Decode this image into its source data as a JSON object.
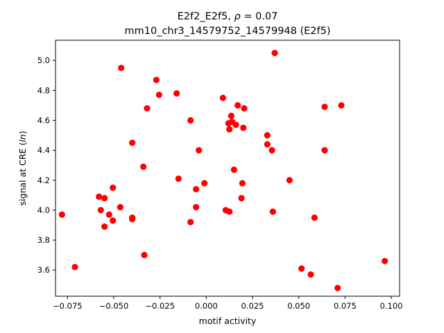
{
  "chart_data": {
    "type": "scatter",
    "title_line1_prefix": "E2f2_E2f5, ",
    "title_rho": "ρ",
    "title_line1_suffix": " = 0.07",
    "title_line2": "mm10_chr3_14579752_14579948 (E2f5)",
    "xlabel": "motif activity",
    "ylabel_prefix": "signal at CRE (",
    "ylabel_italic": "ln",
    "ylabel_suffix": ")",
    "xlim": [
      -0.0815,
      0.1045
    ],
    "ylim": [
      3.425,
      5.135
    ],
    "x_ticks": [
      -0.075,
      -0.05,
      -0.025,
      0.0,
      0.025,
      0.05,
      0.075,
      0.1
    ],
    "x_tick_labels": [
      "−0.075",
      "−0.050",
      "−0.025",
      "0.000",
      "0.025",
      "0.050",
      "0.075",
      "0.100"
    ],
    "y_ticks": [
      3.6,
      3.8,
      4.0,
      4.2,
      4.4,
      4.6,
      4.8,
      5.0
    ],
    "y_tick_labels": [
      "3.6",
      "3.8",
      "4.0",
      "4.2",
      "4.4",
      "4.6",
      "4.8",
      "5.0"
    ],
    "grid": false,
    "marker_color": "#ff0000",
    "points": [
      {
        "x": -0.078,
        "y": 3.97
      },
      {
        "x": -0.071,
        "y": 3.62
      },
      {
        "x": -0.058,
        "y": 4.09
      },
      {
        "x": -0.057,
        "y": 4.0
      },
      {
        "x": -0.055,
        "y": 4.08
      },
      {
        "x": -0.055,
        "y": 3.89
      },
      {
        "x": -0.0525,
        "y": 3.97
      },
      {
        "x": -0.0505,
        "y": 4.15
      },
      {
        "x": -0.0505,
        "y": 3.93
      },
      {
        "x": -0.0465,
        "y": 4.02
      },
      {
        "x": -0.046,
        "y": 4.95
      },
      {
        "x": -0.04,
        "y": 4.45
      },
      {
        "x": -0.04,
        "y": 3.95
      },
      {
        "x": -0.04,
        "y": 3.94
      },
      {
        "x": -0.034,
        "y": 4.29
      },
      {
        "x": -0.0335,
        "y": 3.7
      },
      {
        "x": -0.032,
        "y": 4.68
      },
      {
        "x": -0.027,
        "y": 4.87
      },
      {
        "x": -0.0255,
        "y": 4.77
      },
      {
        "x": -0.016,
        "y": 4.78
      },
      {
        "x": -0.015,
        "y": 4.21
      },
      {
        "x": -0.0085,
        "y": 4.6
      },
      {
        "x": -0.0085,
        "y": 3.92
      },
      {
        "x": -0.0055,
        "y": 4.14
      },
      {
        "x": -0.0055,
        "y": 4.02
      },
      {
        "x": -0.004,
        "y": 4.4
      },
      {
        "x": -0.001,
        "y": 4.18
      },
      {
        "x": 0.009,
        "y": 4.75
      },
      {
        "x": 0.0105,
        "y": 4.0
      },
      {
        "x": 0.012,
        "y": 4.58
      },
      {
        "x": 0.0125,
        "y": 4.54
      },
      {
        "x": 0.0125,
        "y": 3.99
      },
      {
        "x": 0.0135,
        "y": 4.63
      },
      {
        "x": 0.014,
        "y": 4.59
      },
      {
        "x": 0.015,
        "y": 4.27
      },
      {
        "x": 0.016,
        "y": 4.57
      },
      {
        "x": 0.017,
        "y": 4.7
      },
      {
        "x": 0.019,
        "y": 4.08
      },
      {
        "x": 0.0195,
        "y": 4.18
      },
      {
        "x": 0.02,
        "y": 4.55
      },
      {
        "x": 0.0205,
        "y": 4.68
      },
      {
        "x": 0.033,
        "y": 4.5
      },
      {
        "x": 0.033,
        "y": 4.44
      },
      {
        "x": 0.0355,
        "y": 4.4
      },
      {
        "x": 0.036,
        "y": 3.99
      },
      {
        "x": 0.037,
        "y": 5.05
      },
      {
        "x": 0.045,
        "y": 4.2
      },
      {
        "x": 0.0515,
        "y": 3.61
      },
      {
        "x": 0.0565,
        "y": 3.57
      },
      {
        "x": 0.0585,
        "y": 3.95
      },
      {
        "x": 0.064,
        "y": 4.69
      },
      {
        "x": 0.064,
        "y": 4.4
      },
      {
        "x": 0.071,
        "y": 3.48
      },
      {
        "x": 0.073,
        "y": 4.7
      },
      {
        "x": 0.0965,
        "y": 3.66
      }
    ]
  }
}
